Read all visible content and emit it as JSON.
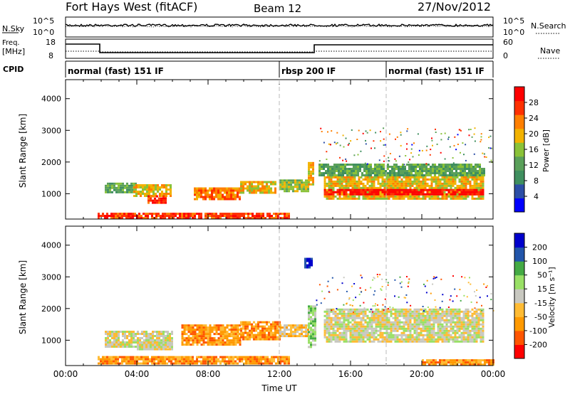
{
  "header": {
    "station": "Fort Hays West (fitACF)",
    "beam": "Beam 12",
    "date": "27/Nov/2012"
  },
  "noise_panel": {
    "left_label": "N.Sky",
    "right_label": "N.Search",
    "left_ticks": [
      "10^5",
      "10^0"
    ],
    "right_ticks": [
      "10^5",
      "10^0"
    ]
  },
  "freq_panel": {
    "left_label_1": "Freq.",
    "left_label_2": "[MHz]",
    "right_label": "Nave",
    "left_ticks": [
      "18",
      "8"
    ],
    "right_ticks": [
      "60",
      "0"
    ]
  },
  "cpid_panel": {
    "label": "CPID",
    "modes": [
      {
        "name": "normal (fast) 151 IF",
        "start_h": 0,
        "end_h": 12
      },
      {
        "name": "rbsp 200 IF",
        "start_h": 12,
        "end_h": 18
      },
      {
        "name": "normal (fast) 151 IF",
        "start_h": 18,
        "end_h": 24
      }
    ]
  },
  "colors": {
    "power": [
      "#0000ff",
      "#2c4ea6",
      "#3f8f5f",
      "#5aa05a",
      "#8ac238",
      "#f2b200",
      "#ff7f00",
      "#ff3000",
      "#ff0000"
    ],
    "velocity": [
      "#ff0000",
      "#ff5500",
      "#ff9900",
      "#ffbb33",
      "#c8c8c0",
      "#99e066",
      "#44aa44",
      "#2255aa",
      "#0000cc"
    ]
  },
  "chart_data": [
    {
      "type": "heatmap",
      "name": "power",
      "ylabel": "Slant Range [km]",
      "cbar_label": "Power [dB]",
      "cbar_ticks": [
        "4",
        "8",
        "12",
        "16",
        "20",
        "24",
        "28"
      ],
      "xlim": [
        0,
        24
      ],
      "ylim": [
        200,
        4600
      ],
      "yticks": [
        "1000",
        "2000",
        "3000",
        "4000"
      ],
      "regions": [
        {
          "t0": 2.2,
          "t1": 3.9,
          "r0": 1050,
          "r1": 1350,
          "level": 3
        },
        {
          "t0": 3.8,
          "t1": 5.9,
          "r0": 900,
          "r1": 1300,
          "level": 5
        },
        {
          "t0": 4.6,
          "t1": 5.6,
          "r0": 700,
          "r1": 950,
          "level": 7
        },
        {
          "t0": 7.2,
          "t1": 9.8,
          "r0": 850,
          "r1": 1200,
          "level": 6
        },
        {
          "t0": 9.8,
          "t1": 11.8,
          "r0": 1000,
          "r1": 1400,
          "level": 5
        },
        {
          "t0": 12.0,
          "t1": 13.6,
          "r0": 1050,
          "r1": 1450,
          "level": 4
        },
        {
          "t0": 13.6,
          "t1": 13.9,
          "r0": 1300,
          "r1": 2000,
          "level": 5
        },
        {
          "t0": 14.5,
          "t1": 23.5,
          "r0": 850,
          "r1": 1550,
          "level": 5
        },
        {
          "t0": 14.5,
          "t1": 23.5,
          "r0": 950,
          "r1": 1150,
          "level": 8
        },
        {
          "t0": 14.2,
          "t1": 23.5,
          "r0": 1550,
          "r1": 1950,
          "level": 3
        },
        {
          "t0": 1.8,
          "t1": 12.5,
          "r0": 250,
          "r1": 400,
          "level": 7
        }
      ]
    },
    {
      "type": "heatmap",
      "name": "velocity",
      "ylabel": "Slant Range [km]",
      "xlabel": "Time UT",
      "cbar_label": "Velocity [m s⁻¹]",
      "cbar_ticks": [
        "-200",
        "-100",
        "-50",
        "-15",
        "15",
        "50",
        "100",
        "200"
      ],
      "xlim": [
        0,
        24
      ],
      "ylim": [
        200,
        4600
      ],
      "xticks": [
        "00:00",
        "04:00",
        "08:00",
        "12:00",
        "16:00",
        "20:00",
        "00:00"
      ],
      "yticks": [
        "1000",
        "2000",
        "3000",
        "4000"
      ],
      "regions": [
        {
          "t0": 2.2,
          "t1": 6.0,
          "r0": 800,
          "r1": 1300,
          "level": 4
        },
        {
          "t0": 4.0,
          "t1": 6.0,
          "r0": 700,
          "r1": 950,
          "level": 4
        },
        {
          "t0": 6.5,
          "t1": 9.8,
          "r0": 850,
          "r1": 1500,
          "level": 2
        },
        {
          "t0": 9.8,
          "t1": 12.0,
          "r0": 1000,
          "r1": 1600,
          "level": 2
        },
        {
          "t0": 12.0,
          "t1": 13.6,
          "r0": 1100,
          "r1": 1500,
          "level": 3
        },
        {
          "t0": 13.6,
          "t1": 14.0,
          "r0": 800,
          "r1": 2100,
          "level": 5
        },
        {
          "t0": 14.5,
          "t1": 23.5,
          "r0": 950,
          "r1": 2000,
          "level": 4
        },
        {
          "t0": 1.8,
          "t1": 12.5,
          "r0": 250,
          "r1": 500,
          "level": 2
        },
        {
          "t0": 20.0,
          "t1": 24.0,
          "r0": 250,
          "r1": 400,
          "level": 2
        },
        {
          "t0": 13.4,
          "t1": 13.8,
          "r0": 3300,
          "r1": 3600,
          "level": 8
        }
      ]
    }
  ]
}
